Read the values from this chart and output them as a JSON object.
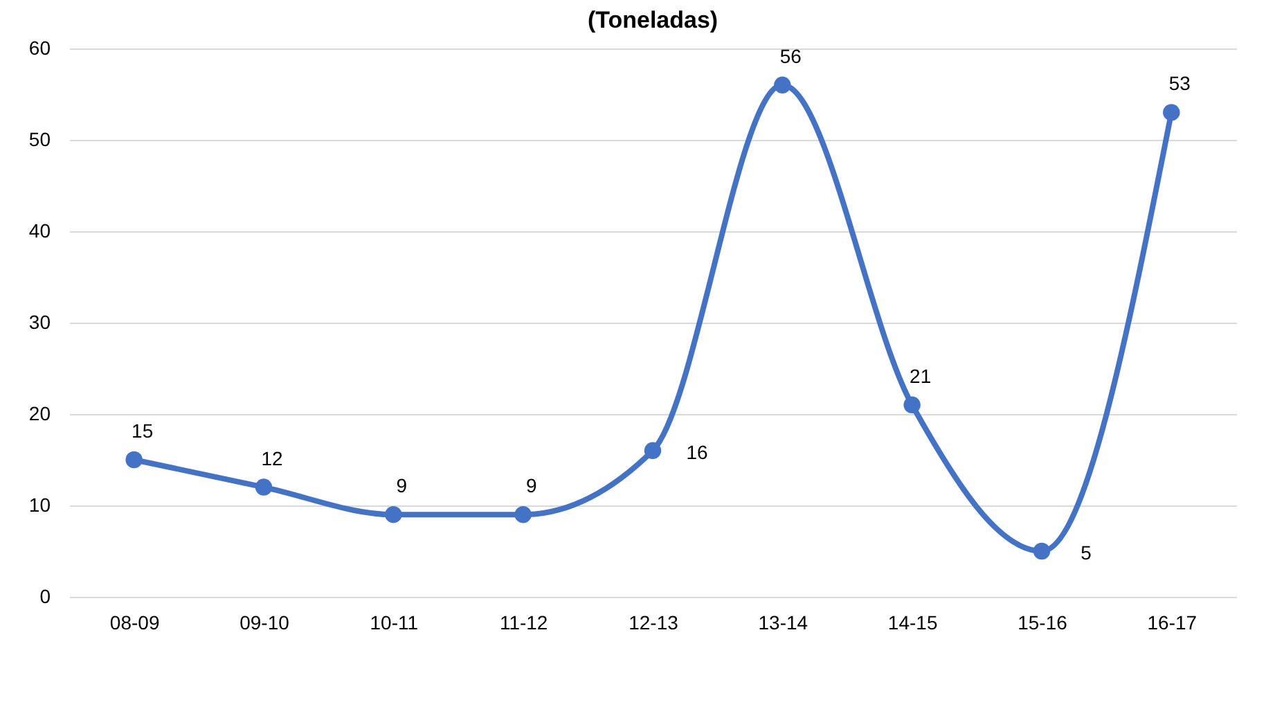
{
  "chart_data": {
    "type": "line",
    "title": "(Toneladas)",
    "categories": [
      "08-09",
      "09-10",
      "10-11",
      "11-12",
      "12-13",
      "13-14",
      "14-15",
      "15-16",
      "16-17"
    ],
    "values": [
      15,
      12,
      9,
      9,
      16,
      56,
      21,
      5,
      53
    ],
    "color": "#4472c4",
    "ylim": [
      0,
      60
    ],
    "yticks": [
      0,
      10,
      20,
      30,
      40,
      50,
      60
    ],
    "grid": "y",
    "data_labels": true,
    "marker": "circle",
    "line_style": "solid"
  }
}
